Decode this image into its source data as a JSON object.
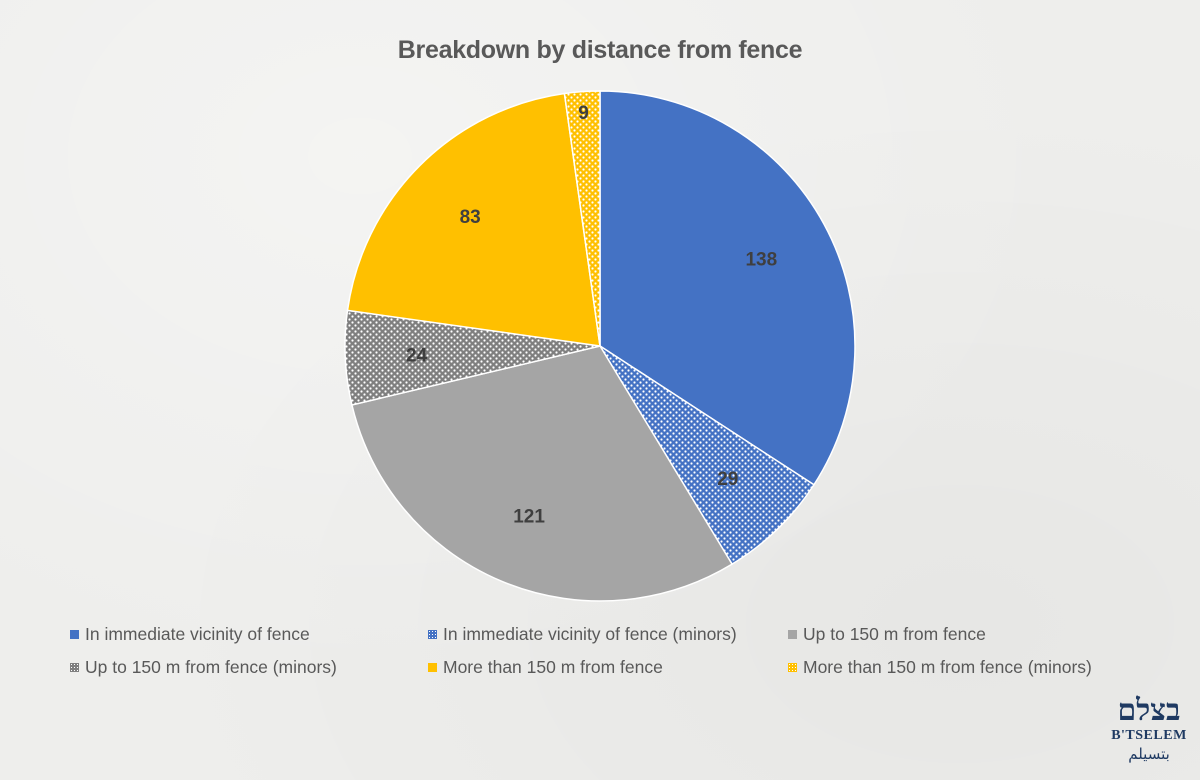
{
  "chart_data": {
    "type": "pie",
    "title": "Breakdown by distance from fence",
    "start_angle_deg": 0,
    "direction": "clockwise",
    "legend_position": "bottom",
    "slices": [
      {
        "label": "In immediate vicinity of fence",
        "value": 138,
        "color": "#4472C4",
        "pattern": "solid"
      },
      {
        "label": "In immediate vicinity of fence (minors)",
        "value": 29,
        "color": "#4472C4",
        "pattern": "dots"
      },
      {
        "label": "Up to 150 m from fence",
        "value": 121,
        "color": "#A5A5A5",
        "pattern": "solid"
      },
      {
        "label": "Up to 150 m from fence (minors)",
        "value": 24,
        "color": "#7F7F7F",
        "pattern": "dots"
      },
      {
        "label": "More than 150 m from fence",
        "value": 83,
        "color": "#FFC000",
        "pattern": "solid"
      },
      {
        "label": "More than 150 m from fence (minors)",
        "value": 9,
        "color": "#FFC000",
        "pattern": "dots"
      }
    ]
  },
  "logo": {
    "hebrew": "בצלם",
    "latin": "B'TSELEM",
    "arabic": "بتسيلم"
  }
}
